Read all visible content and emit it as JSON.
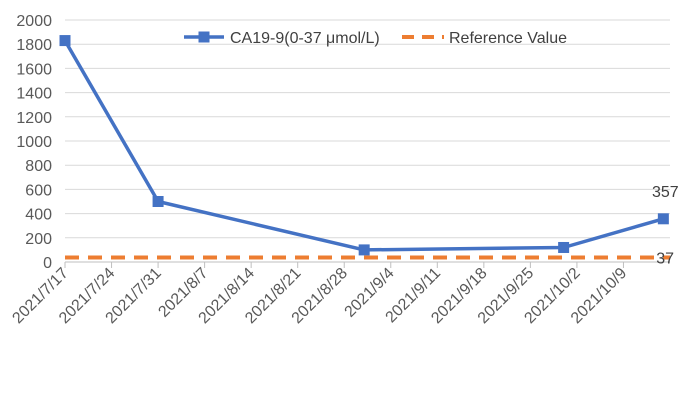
{
  "chart_data": {
    "type": "line",
    "title": "",
    "xlabel": "",
    "ylabel": "",
    "ylim": [
      0,
      2000
    ],
    "y_ticks": [
      "0",
      "200",
      "400",
      "600",
      "800",
      "1000",
      "1200",
      "1400",
      "1600",
      "1800",
      "2000"
    ],
    "x_ticks": [
      "2021/7/17",
      "2021/7/24",
      "2021/7/31",
      "2021/8/7",
      "2021/8/14",
      "2021/8/21",
      "2021/8/28",
      "2021/9/4",
      "2021/9/11",
      "2021/9/18",
      "2021/9/25",
      "2021/10/2",
      "2021/10/9"
    ],
    "xlim": [
      "2021/7/17",
      "2021/10/16"
    ],
    "grid": "horizontal",
    "legend_position": "top",
    "series": [
      {
        "name": "CA19-9(0-37 μmol/L)",
        "color": "#4472C4",
        "marker": "square",
        "line_style": "solid",
        "points": [
          {
            "x": "2021/7/17",
            "y": 1830
          },
          {
            "x": "2021/7/31",
            "y": 500
          },
          {
            "x": "2021/8/31",
            "y": 100
          },
          {
            "x": "2021/9/30",
            "y": 120
          },
          {
            "x": "2021/10/15",
            "y": 357
          }
        ]
      },
      {
        "name": "Reference Value",
        "color": "#ED7D31",
        "line_style": "dashed",
        "points": [
          {
            "x": "2021/7/17",
            "y": 37
          },
          {
            "x": "2021/10/16",
            "y": 37
          }
        ]
      }
    ],
    "annotations": [
      {
        "text": "357",
        "x": "2021/10/15",
        "y": 357
      },
      {
        "text": "37",
        "x": "2021/10/16",
        "y": 37
      }
    ]
  }
}
